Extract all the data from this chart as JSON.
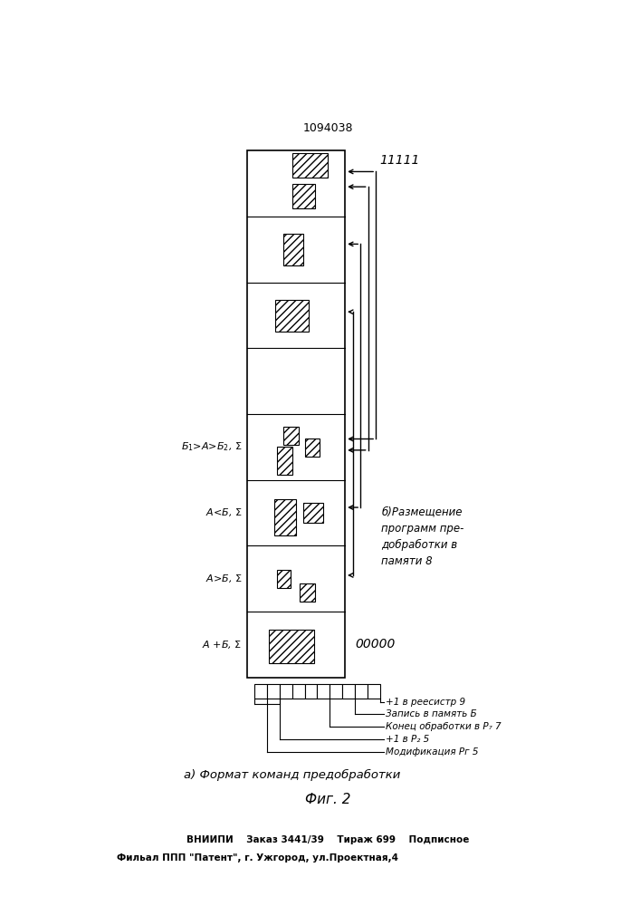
{
  "title": "1094038",
  "fig_label": "Фиг. 2",
  "background_color": "#ffffff",
  "label_11111": "11111",
  "label_00000": "00000",
  "annotation_b": "б)Размещение\nпрограмм пре-\nдобработки в\nпамяти 8",
  "format_lines": [
    "+1 в реесистр 9",
    "Запись в память Б",
    "Конец обработки в Р₇ 7",
    "+1 в Р₂ 5",
    "Модификация Рг 5"
  ],
  "format_label": "а) Формат команд предобработки",
  "footer1": "ВНИИПИ    Заказ 3441/39    Тираж 699    Подписное",
  "footer2": "Фильал ППП \"Патент\", г. Ужгород, ул.Проектная,4"
}
